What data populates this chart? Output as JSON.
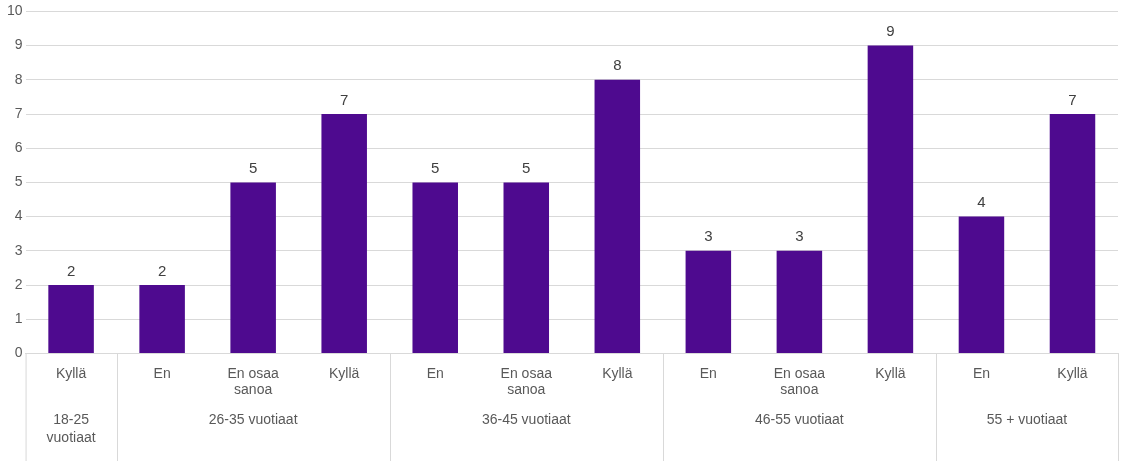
{
  "chart_data": {
    "type": "bar",
    "categories": [
      "Kyllä",
      "En",
      "En osaa sanoa",
      "Kyllä",
      "En",
      "En osaa sanoa",
      "Kyllä",
      "En",
      "En osaa sanoa",
      "Kyllä",
      "En",
      "Kyllä"
    ],
    "values": [
      2,
      2,
      5,
      7,
      5,
      5,
      8,
      3,
      3,
      9,
      4,
      7
    ],
    "color": "#4e0a8f",
    "ylim": [
      0,
      10
    ],
    "yticks": [
      0,
      1,
      2,
      3,
      4,
      5,
      6,
      7,
      8,
      9,
      10
    ],
    "grid": "y",
    "data_labels": true,
    "annotations": [
      "18-25 vuotiaat",
      "26-35 vuotiaat",
      "36-45 vuotiaat",
      "46-55 vuotiaat",
      "55 + vuotiaat"
    ]
  }
}
